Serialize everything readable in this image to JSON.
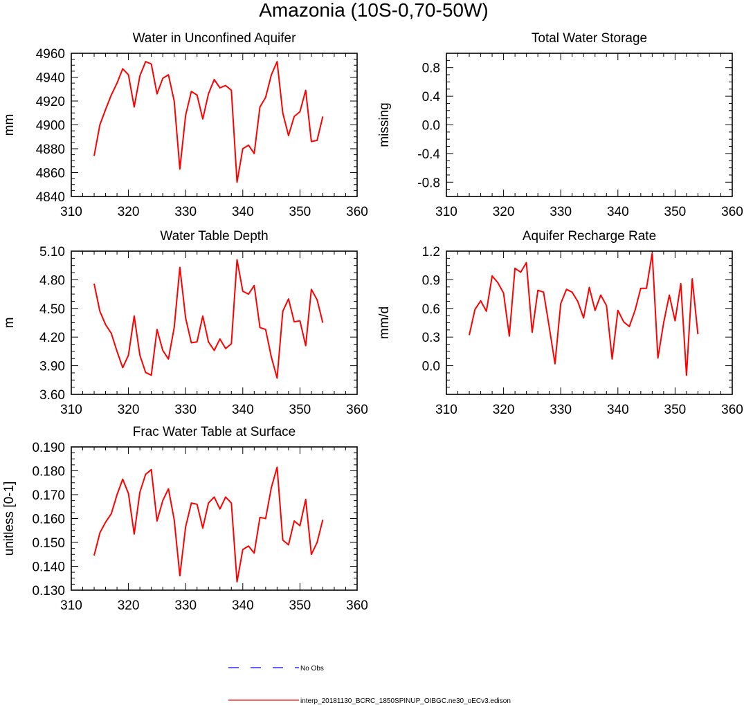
{
  "figure": {
    "title": "Amazonia (10S-0,70-50W)"
  },
  "legend": {
    "obs_label": "No Obs",
    "obs_color": "#0000ff",
    "model_label": "interp_20181130_BCRC_1850SPINUP_OIBGC.ne30_oECv3.edison",
    "model_color": "#ff0000"
  },
  "chart_data": [
    {
      "id": "unconfined",
      "type": "line",
      "title": "Water in Unconfined Aquifer",
      "ylabel": "mm",
      "xlim": [
        310,
        360
      ],
      "ylim": [
        4840,
        4960
      ],
      "xticks": [
        "310",
        "320",
        "330",
        "340",
        "350",
        "360"
      ],
      "yticks": [
        "4840",
        "4860",
        "4880",
        "4900",
        "4920",
        "4940",
        "4960"
      ],
      "series": [
        {
          "x": [
            314,
            315,
            316,
            317,
            318,
            319,
            320,
            321,
            322,
            323,
            324,
            325,
            326,
            327,
            328,
            329,
            330,
            331,
            332,
            333,
            334,
            335,
            336,
            337,
            338,
            339,
            340,
            341,
            342,
            343,
            344,
            345,
            346,
            347,
            348,
            349,
            350,
            351,
            352,
            353,
            354
          ],
          "values": [
            4874,
            4900,
            4913,
            4925,
            4935,
            4947,
            4942,
            4915,
            4941,
            4953,
            4951,
            4926,
            4939,
            4942,
            4920,
            4863,
            4908,
            4928,
            4925,
            4905,
            4926,
            4938,
            4931,
            4933,
            4929,
            4852,
            4880,
            4883,
            4876,
            4915,
            4923,
            4942,
            4953,
            4910,
            4891,
            4907,
            4911,
            4929,
            4886,
            4887,
            4907
          ]
        }
      ]
    },
    {
      "id": "tws",
      "type": "line",
      "title": "Total Water Storage",
      "ylabel": "missing",
      "xlim": [
        310,
        360
      ],
      "ylim": [
        -1,
        1
      ],
      "xticks": [
        "310",
        "320",
        "330",
        "340",
        "350",
        "360"
      ],
      "yticks": [
        "-0.8",
        "-0.4",
        "0.0",
        "0.4",
        "0.8"
      ],
      "series": []
    },
    {
      "id": "wtd",
      "type": "line",
      "title": "Water Table Depth",
      "ylabel": "m",
      "xlim": [
        310,
        360
      ],
      "ylim": [
        3.6,
        5.1
      ],
      "xticks": [
        "310",
        "320",
        "330",
        "340",
        "350",
        "360"
      ],
      "yticks": [
        "3.60",
        "3.90",
        "4.20",
        "4.50",
        "4.80",
        "5.10"
      ],
      "series": [
        {
          "x": [
            314,
            315,
            316,
            317,
            318,
            319,
            320,
            321,
            322,
            323,
            324,
            325,
            326,
            327,
            328,
            329,
            330,
            331,
            332,
            333,
            334,
            335,
            336,
            337,
            338,
            339,
            340,
            341,
            342,
            343,
            344,
            345,
            346,
            347,
            348,
            349,
            350,
            351,
            352,
            353,
            354
          ],
          "values": [
            4.76,
            4.47,
            4.33,
            4.24,
            4.05,
            3.88,
            4.01,
            4.42,
            4.01,
            3.83,
            3.8,
            4.28,
            4.06,
            3.97,
            4.3,
            4.93,
            4.4,
            4.14,
            4.15,
            4.42,
            4.15,
            4.06,
            4.18,
            4.08,
            4.13,
            5.01,
            4.68,
            4.65,
            4.74,
            4.3,
            4.28,
            3.99,
            3.77,
            4.47,
            4.6,
            4.36,
            4.37,
            4.11,
            4.7,
            4.59,
            4.35
          ]
        }
      ]
    },
    {
      "id": "recharge",
      "type": "line",
      "title": "Aquifer Recharge Rate",
      "ylabel": "mm/d",
      "xlim": [
        310,
        360
      ],
      "ylim": [
        -0.3,
        1.2
      ],
      "xticks": [
        "310",
        "320",
        "330",
        "340",
        "350",
        "360"
      ],
      "yticks": [
        "0.0",
        "0.3",
        "0.6",
        "0.9",
        "1.2"
      ],
      "series": [
        {
          "x": [
            314,
            315,
            316,
            317,
            318,
            319,
            320,
            321,
            322,
            323,
            324,
            325,
            326,
            327,
            328,
            329,
            330,
            331,
            332,
            333,
            334,
            335,
            336,
            337,
            338,
            339,
            340,
            341,
            342,
            343,
            344,
            345,
            346,
            347,
            348,
            349,
            350,
            351,
            352,
            353,
            354
          ],
          "values": [
            0.32,
            0.59,
            0.68,
            0.57,
            0.94,
            0.87,
            0.76,
            0.31,
            1.02,
            0.98,
            1.08,
            0.35,
            0.79,
            0.77,
            0.4,
            0.02,
            0.65,
            0.8,
            0.77,
            0.67,
            0.5,
            0.82,
            0.58,
            0.74,
            0.63,
            0.07,
            0.58,
            0.46,
            0.41,
            0.58,
            0.81,
            0.81,
            1.18,
            0.08,
            0.45,
            0.74,
            0.47,
            0.86,
            -0.1,
            0.91,
            0.33
          ]
        }
      ]
    },
    {
      "id": "frac",
      "type": "line",
      "title": "Frac Water Table at Surface",
      "ylabel": "unitless [0-1]",
      "xlim": [
        310,
        360
      ],
      "ylim": [
        0.13,
        0.19
      ],
      "xticks": [
        "310",
        "320",
        "330",
        "340",
        "350",
        "360"
      ],
      "yticks": [
        "0.130",
        "0.140",
        "0.150",
        "0.160",
        "0.170",
        "0.180",
        "0.190"
      ],
      "series": [
        {
          "x": [
            314,
            315,
            316,
            317,
            318,
            319,
            320,
            321,
            322,
            323,
            324,
            325,
            326,
            327,
            328,
            329,
            330,
            331,
            332,
            333,
            334,
            335,
            336,
            337,
            338,
            339,
            340,
            341,
            342,
            343,
            344,
            345,
            346,
            347,
            348,
            349,
            350,
            351,
            352,
            353,
            354
          ],
          "values": [
            0.1445,
            0.154,
            0.1585,
            0.162,
            0.17,
            0.1765,
            0.1705,
            0.1535,
            0.171,
            0.1785,
            0.1805,
            0.159,
            0.1675,
            0.1725,
            0.1595,
            0.136,
            0.1565,
            0.1665,
            0.166,
            0.156,
            0.1665,
            0.169,
            0.164,
            0.169,
            0.1665,
            0.1335,
            0.147,
            0.1485,
            0.1455,
            0.1605,
            0.16,
            0.173,
            0.1815,
            0.151,
            0.149,
            0.159,
            0.157,
            0.168,
            0.145,
            0.15,
            0.1595
          ]
        }
      ]
    }
  ]
}
